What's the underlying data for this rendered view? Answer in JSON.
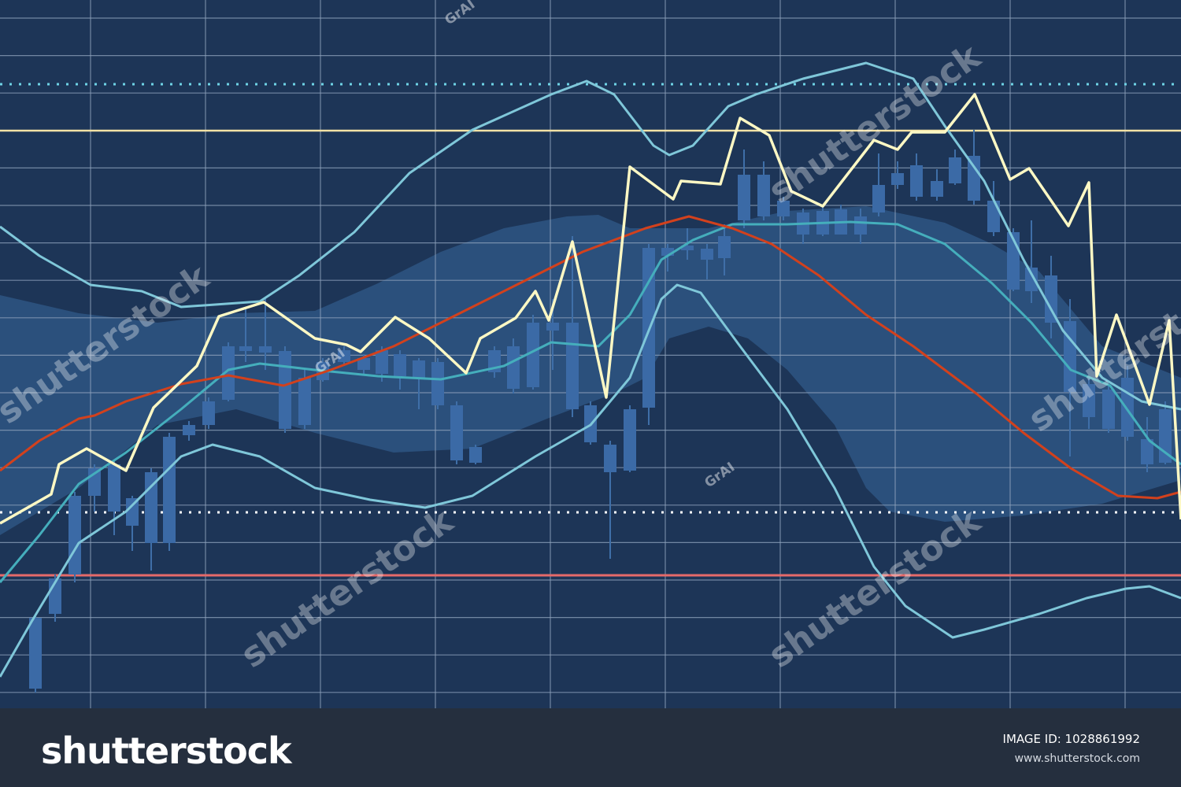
{
  "watermark": {
    "brand": "shutterstock",
    "tag": "GrAI"
  },
  "footer": {
    "logo": "shutterstock",
    "image_id": "IMAGE ID: 1028861992",
    "url": "www.shutterstock.com"
  }
}
